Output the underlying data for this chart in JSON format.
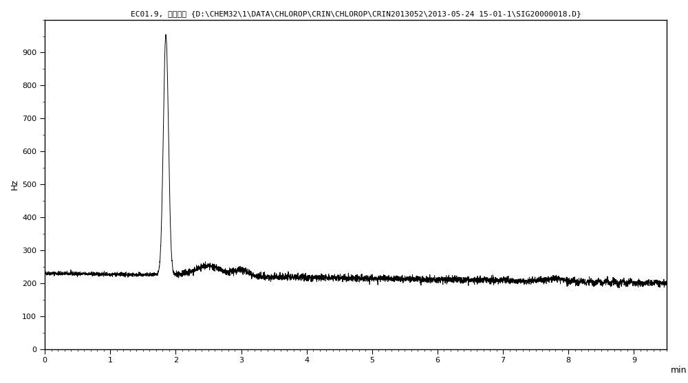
{
  "title": "EC01.9, 文件编号 {D:\\CHEM32\\1\\DATA\\CHLOROP\\CRIN\\CHLOROP\\CRIN2013052\\2013-05-24 15-01-1\\SIG20000018.D}",
  "ylabel": "Hz",
  "xlabel": "min",
  "xlim": [
    0,
    9.5
  ],
  "ylim": [
    0,
    1000
  ],
  "yticks": [
    0,
    100,
    200,
    300,
    400,
    500,
    600,
    700,
    800,
    900
  ],
  "xticks": [
    0,
    1,
    2,
    3,
    4,
    5,
    6,
    7,
    8,
    9
  ],
  "baseline": 230,
  "peak_x": 1.85,
  "peak_height": 960,
  "background_color": "#f0f0f0",
  "line_color": "#000000",
  "title_fontsize": 8
}
